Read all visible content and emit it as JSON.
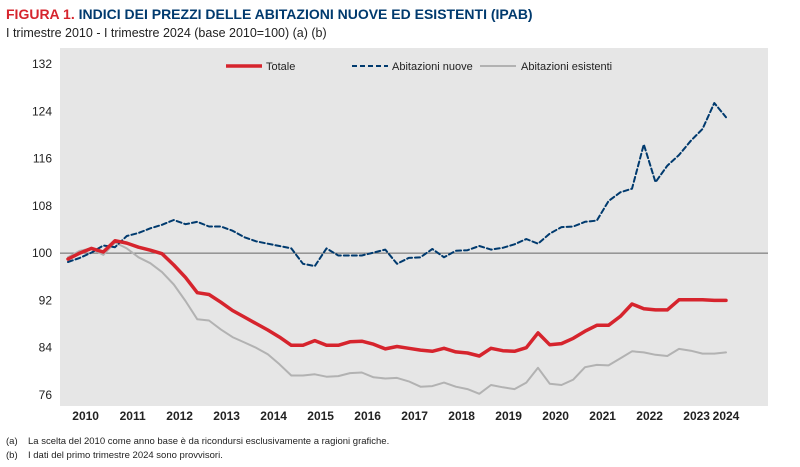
{
  "header": {
    "figure_label": "FIGURA 1.",
    "title": "INDICI DEI PREZZI DELLE ABITAZIONI NUOVE ED ESISTENTI (IPAB)",
    "subtitle": "I trimestre 2010 - I trimestre 2024 (base 2010=100) (a) (b)"
  },
  "chart_data": {
    "type": "line",
    "x": [
      "2010-Q1",
      "2010-Q2",
      "2010-Q3",
      "2010-Q4",
      "2011-Q1",
      "2011-Q2",
      "2011-Q3",
      "2011-Q4",
      "2012-Q1",
      "2012-Q2",
      "2012-Q3",
      "2012-Q4",
      "2013-Q1",
      "2013-Q2",
      "2013-Q3",
      "2013-Q4",
      "2014-Q1",
      "2014-Q2",
      "2014-Q3",
      "2014-Q4",
      "2015-Q1",
      "2015-Q2",
      "2015-Q3",
      "2015-Q4",
      "2016-Q1",
      "2016-Q2",
      "2016-Q3",
      "2016-Q4",
      "2017-Q1",
      "2017-Q2",
      "2017-Q3",
      "2017-Q4",
      "2018-Q1",
      "2018-Q2",
      "2018-Q3",
      "2018-Q4",
      "2019-Q1",
      "2019-Q2",
      "2019-Q3",
      "2019-Q4",
      "2020-Q1",
      "2020-Q2",
      "2020-Q3",
      "2020-Q4",
      "2021-Q1",
      "2021-Q2",
      "2021-Q3",
      "2021-Q4",
      "2022-Q1",
      "2022-Q2",
      "2022-Q3",
      "2022-Q4",
      "2023-Q1",
      "2023-Q2",
      "2023-Q3",
      "2023-Q4",
      "2024-Q1"
    ],
    "series": [
      {
        "name": "Totale",
        "color": "#d6242d",
        "style": "solid",
        "values": [
          99.0,
          100.0,
          100.8,
          100.2,
          102.1,
          101.7,
          101.0,
          100.5,
          99.9,
          98.0,
          95.9,
          93.3,
          93.0,
          91.7,
          90.3,
          89.2,
          88.1,
          87.0,
          85.8,
          84.4,
          84.4,
          85.2,
          84.4,
          84.4,
          85.0,
          85.1,
          84.6,
          83.8,
          84.2,
          83.9,
          83.6,
          83.4,
          83.9,
          83.3,
          83.1,
          82.6,
          83.9,
          83.5,
          83.4,
          84.0,
          86.5,
          84.5,
          84.7,
          85.6,
          86.8,
          87.8,
          87.8,
          89.3,
          91.4,
          90.6,
          90.4,
          90.4,
          92.1,
          92.1,
          92.1,
          92.0,
          92.0
        ]
      },
      {
        "name": "Abitazioni nuove",
        "color": "#003a6e",
        "style": "dashed",
        "values": [
          98.5,
          99.2,
          100.1,
          101.3,
          101.0,
          102.9,
          103.4,
          104.2,
          104.8,
          105.6,
          104.9,
          105.3,
          104.5,
          104.5,
          103.8,
          102.7,
          102.0,
          101.6,
          101.2,
          100.8,
          98.2,
          97.8,
          100.8,
          99.6,
          99.6,
          99.6,
          100.1,
          100.6,
          98.2,
          99.2,
          99.3,
          100.7,
          99.3,
          100.4,
          100.5,
          101.2,
          100.6,
          100.9,
          101.5,
          102.4,
          101.6,
          103.3,
          104.4,
          104.5,
          105.3,
          105.5,
          108.8,
          110.3,
          110.9,
          118.4,
          112.0,
          114.8,
          116.6,
          119.0,
          121.0,
          125.4,
          123.0
        ]
      },
      {
        "name": "Abitazioni esistenti",
        "color": "#b2b2b2",
        "style": "solid",
        "values": [
          99.3,
          100.4,
          100.8,
          99.7,
          101.8,
          100.8,
          99.3,
          98.3,
          96.8,
          94.7,
          91.9,
          88.8,
          88.6,
          87.1,
          85.8,
          84.9,
          84.0,
          82.9,
          81.2,
          79.3,
          79.3,
          79.5,
          79.1,
          79.2,
          79.7,
          79.8,
          79.0,
          78.8,
          78.9,
          78.3,
          77.4,
          77.5,
          78.1,
          77.4,
          77.0,
          76.2,
          77.7,
          77.3,
          77.0,
          78.1,
          80.6,
          77.9,
          77.7,
          78.6,
          80.7,
          81.1,
          81.0,
          82.2,
          83.4,
          83.2,
          82.8,
          82.6,
          83.8,
          83.5,
          83.0,
          83.0,
          83.2
        ]
      }
    ],
    "x_tick_labels": [
      "2010",
      "2011",
      "2012",
      "2013",
      "2014",
      "2015",
      "2016",
      "2017",
      "2018",
      "2019",
      "2020",
      "2021",
      "2022",
      "2023",
      "2024"
    ],
    "y_ticks": [
      76,
      84,
      92,
      100,
      108,
      116,
      124,
      132
    ],
    "ylim": [
      76,
      132
    ],
    "reference_line": 100,
    "legend_position": "top",
    "grid": false,
    "plot_background": "#e6e6e6"
  },
  "notes": [
    {
      "label": "(a)",
      "text": "La scelta del 2010 come anno base è da ricondursi esclusivamente a ragioni grafiche."
    },
    {
      "label": "(b)",
      "text": "I dati del primo trimestre 2024 sono provvisori."
    }
  ]
}
